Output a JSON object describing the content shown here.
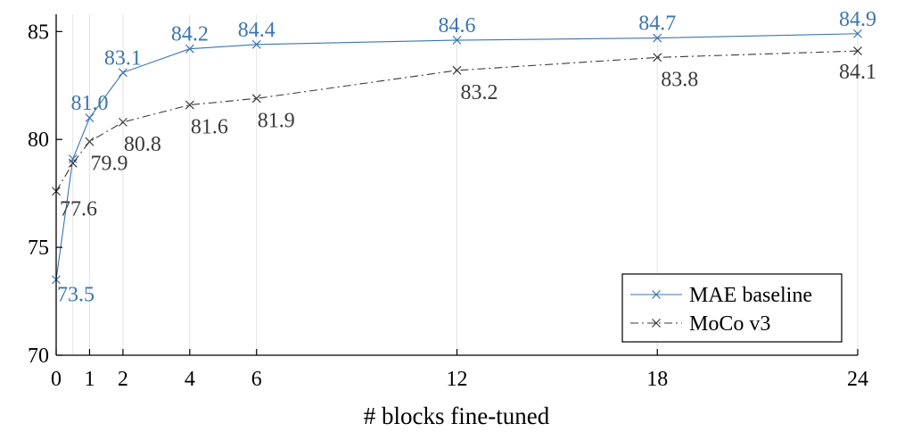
{
  "chart_data": {
    "type": "line",
    "xlabel": "# blocks fine-tuned",
    "ylabel": "",
    "xlim": [
      0,
      24
    ],
    "ylim": [
      70,
      85.8
    ],
    "xticks": [
      0,
      1,
      2,
      4,
      6,
      12,
      18,
      24
    ],
    "yticks": [
      70,
      75,
      80,
      85
    ],
    "grid": "vertical-at-data-x",
    "legend_position": "bottom-right",
    "series": [
      {
        "name": "MAE baseline",
        "color": "#3b75b0",
        "line_style": "solid",
        "marker": "x",
        "x": [
          0,
          0.5,
          1,
          2,
          4,
          6,
          12,
          18,
          24
        ],
        "y": [
          73.5,
          79.1,
          81.0,
          83.1,
          84.2,
          84.4,
          84.6,
          84.7,
          84.9
        ],
        "labels": [
          "73.5",
          "",
          "81.0",
          "83.1",
          "84.2",
          "84.4",
          "84.6",
          "84.7",
          "84.9"
        ]
      },
      {
        "name": "MoCo v3",
        "color": "#3a3a3a",
        "line_style": "dash-dot",
        "marker": "x",
        "x": [
          0,
          0.5,
          1,
          2,
          4,
          6,
          12,
          18,
          24
        ],
        "y": [
          77.6,
          78.9,
          79.9,
          80.8,
          81.6,
          81.9,
          83.2,
          83.8,
          84.1
        ],
        "labels": [
          "77.6",
          "",
          "79.9",
          "80.8",
          "81.6",
          "81.9",
          "83.2",
          "83.8",
          "84.1"
        ]
      }
    ]
  }
}
